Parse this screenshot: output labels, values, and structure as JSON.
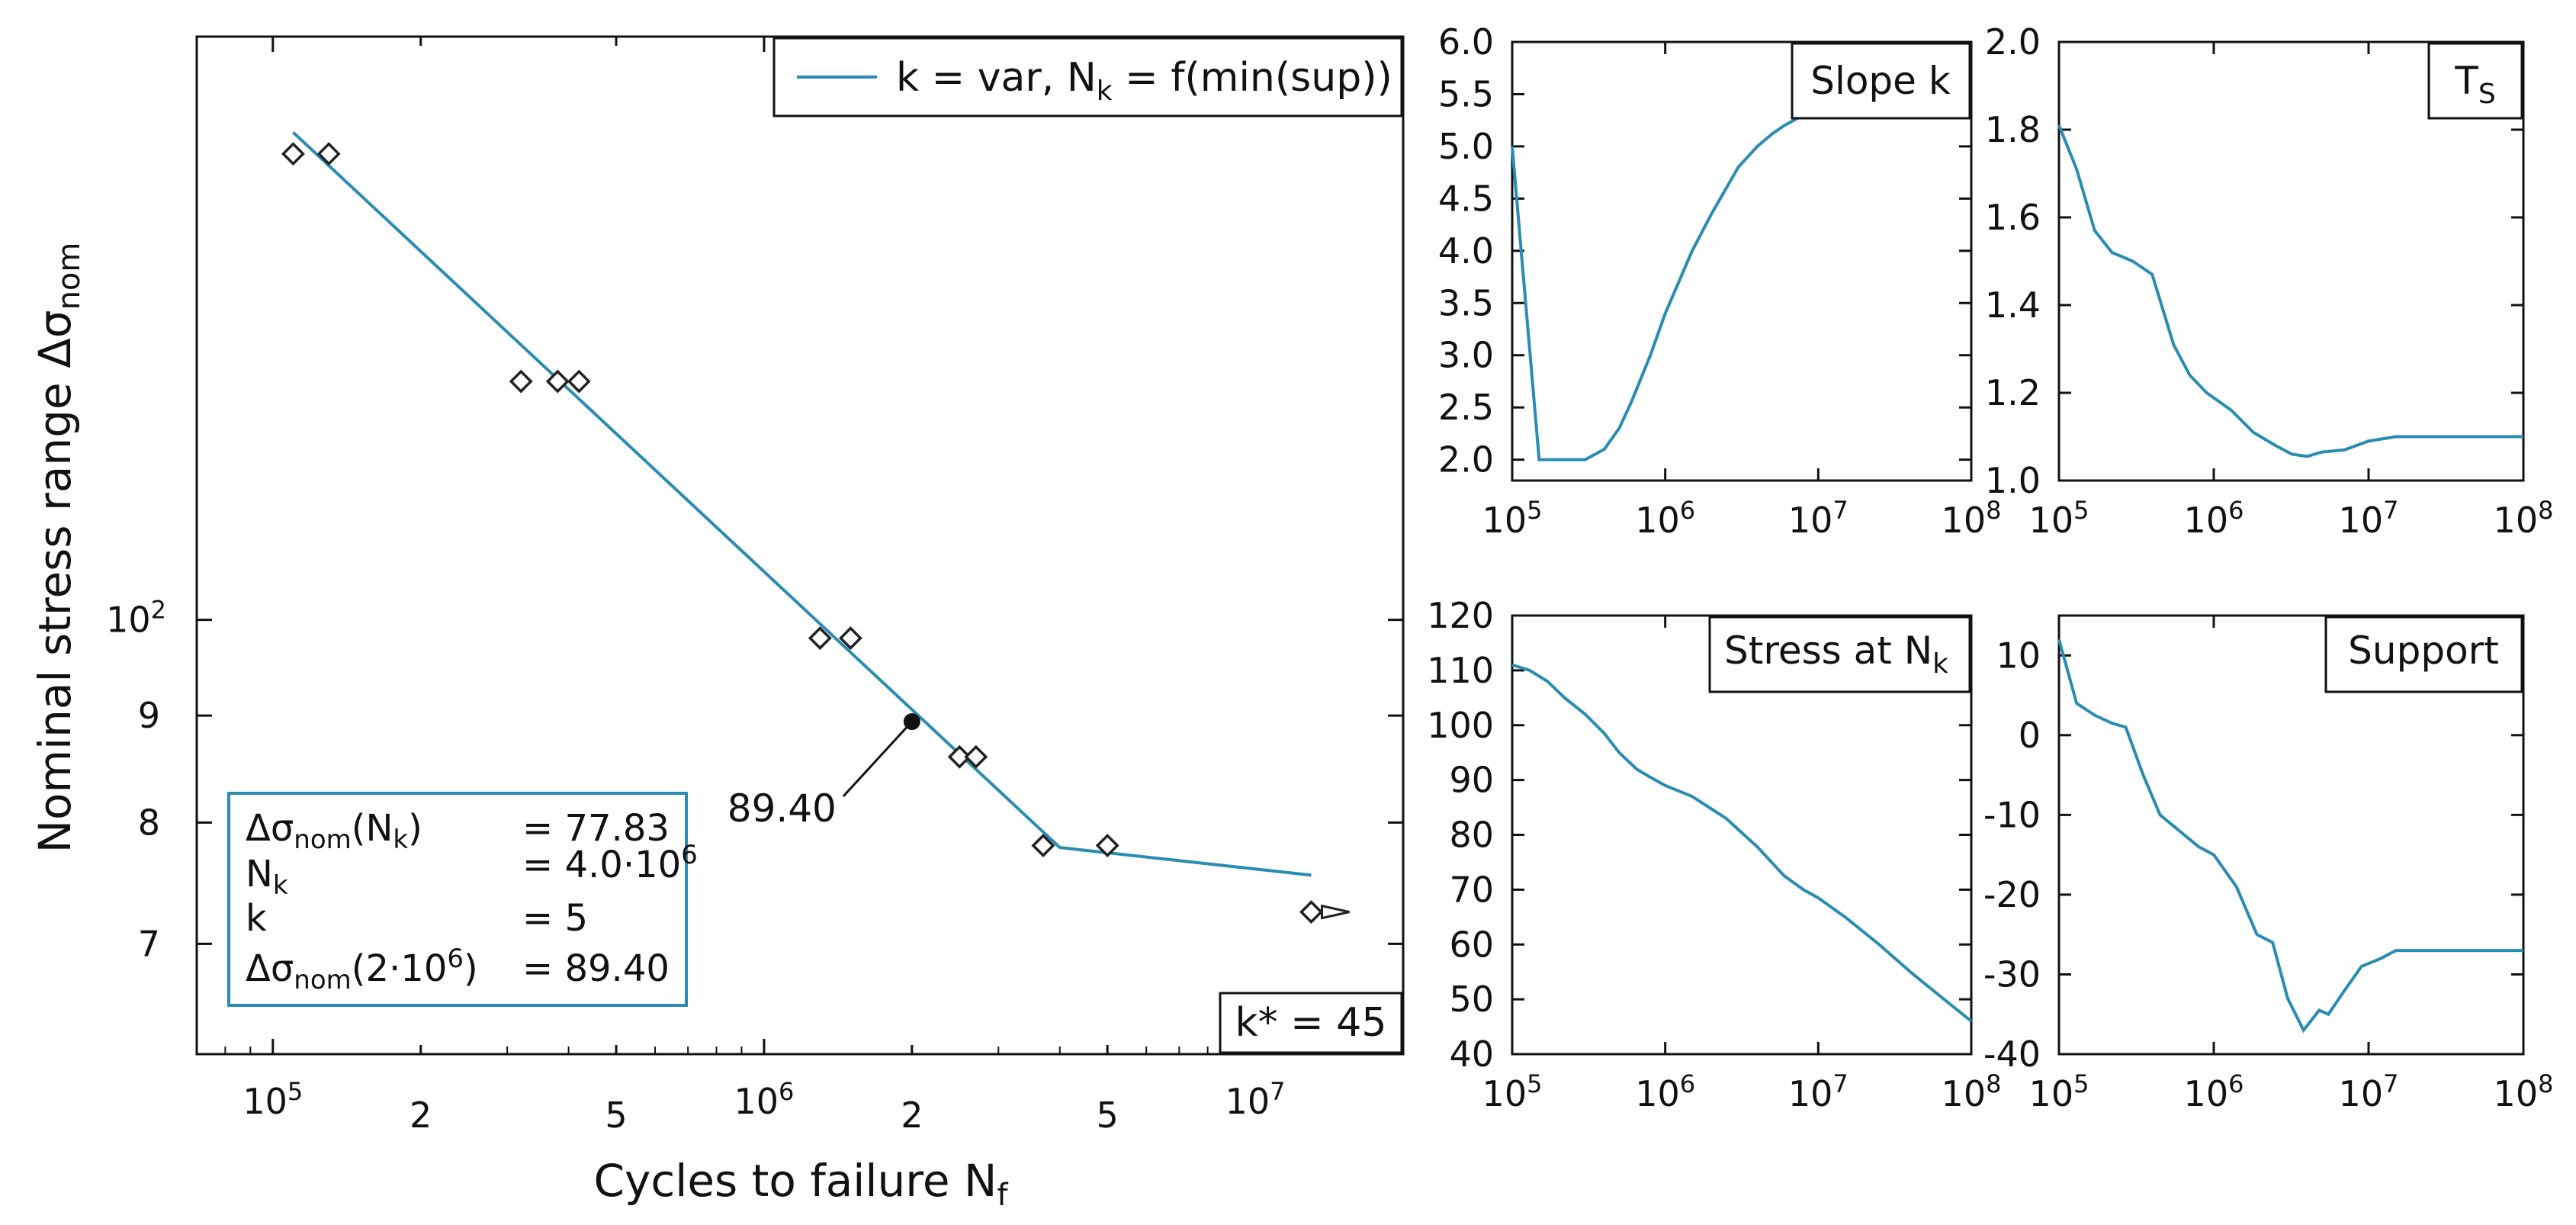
{
  "colors": {
    "line": "#2a8cb2",
    "axis": "#111111",
    "marker": "#222222",
    "background": "#ffffff"
  },
  "chart_data": [
    {
      "id": "main",
      "type": "scatter",
      "title": "",
      "xlabel": {
        "main": "Cycles to failure N",
        "sub": "f"
      },
      "ylabel": {
        "main": "Nominal stress range Δσ",
        "sub": "nom"
      },
      "x_scale": "log",
      "y_scale": "log",
      "xlim": [
        70000,
        20000000
      ],
      "ylim": [
        62,
        190
      ],
      "x_ticks": [
        {
          "value": 100000,
          "base": "10",
          "exp": "5"
        },
        {
          "value": 200000,
          "label": "2"
        },
        {
          "value": 500000,
          "label": "5"
        },
        {
          "value": 1000000,
          "base": "10",
          "exp": "6"
        },
        {
          "value": 2000000,
          "label": "2"
        },
        {
          "value": 5000000,
          "label": "5"
        },
        {
          "value": 10000000,
          "base": "10",
          "exp": "7"
        }
      ],
      "y_ticks": [
        {
          "value": 70,
          "label": "7"
        },
        {
          "value": 80,
          "label": "8"
        },
        {
          "value": 90,
          "label": "9"
        },
        {
          "value": 100,
          "base": "10",
          "exp": "2"
        }
      ],
      "legend": {
        "main": "k = var, N",
        "sub": "k",
        "tail": " = f(min(sup))",
        "position": "top-right"
      },
      "fit_line": {
        "name": "k = var, Nk = f(min(sup))",
        "x": [
          110000,
          4000000,
          13000000
        ],
        "y": [
          171,
          77.83,
          75.5
        ]
      },
      "points": [
        {
          "x": 110000,
          "y": 167
        },
        {
          "x": 130000,
          "y": 167
        },
        {
          "x": 320000,
          "y": 130
        },
        {
          "x": 380000,
          "y": 130
        },
        {
          "x": 420000,
          "y": 130
        },
        {
          "x": 1300000,
          "y": 98
        },
        {
          "x": 1500000,
          "y": 98
        },
        {
          "x": 2500000,
          "y": 86
        },
        {
          "x": 2700000,
          "y": 86
        },
        {
          "x": 3700000,
          "y": 78
        },
        {
          "x": 5000000,
          "y": 78
        },
        {
          "x": 13000000,
          "y": 72.5
        }
      ],
      "runout": {
        "x": 13000000,
        "y": 72.5
      },
      "highlight": {
        "x": 2000000,
        "y": 89.4,
        "label": "89.40"
      },
      "info_box": {
        "rows": [
          {
            "sym": "Δσ",
            "sub": "nom",
            "arg": "(N",
            "argsub": "k",
            "argtail": ")",
            "value": "= 77.83"
          },
          {
            "sym": "N",
            "sub": "k",
            "arg": "",
            "argsub": "",
            "argtail": "",
            "value": "= 4.0·10",
            "vexp": "6"
          },
          {
            "sym": "k",
            "sub": "",
            "arg": "",
            "argsub": "",
            "argtail": "",
            "value": "= 5"
          },
          {
            "sym": "Δσ",
            "sub": "nom",
            "arg": "(2·10",
            "argsup": "6",
            "argtail": ")",
            "value": "= 89.40"
          }
        ]
      },
      "kstar": "k* = 45"
    },
    {
      "id": "slope",
      "type": "line",
      "title": "Slope k",
      "x_scale": "log",
      "xlim": [
        100000,
        100000000
      ],
      "ylim": [
        1.8,
        6.0
      ],
      "y_ticks": [
        "2.0",
        "2.5",
        "3.0",
        "3.5",
        "4.0",
        "4.5",
        "5.0",
        "5.5",
        "6.0"
      ],
      "y_tick_values": [
        2.0,
        2.5,
        3.0,
        3.5,
        4.0,
        4.5,
        5.0,
        5.5,
        6.0
      ],
      "x_ticks": [
        {
          "value": 100000,
          "base": "10",
          "exp": "5"
        },
        {
          "value": 1000000,
          "base": "10",
          "exp": "6"
        },
        {
          "value": 10000000,
          "base": "10",
          "exp": "7"
        },
        {
          "value": 100000000,
          "base": "10",
          "exp": "8"
        }
      ],
      "x": [
        100000,
        150000,
        200000,
        300000,
        400000,
        500000,
        600000,
        800000,
        1000000,
        1500000,
        2000000,
        3000000,
        4000000,
        5000000,
        6000000,
        8000000
      ],
      "y": [
        5.0,
        2.0,
        2.0,
        2.0,
        2.1,
        2.3,
        2.55,
        3.0,
        3.4,
        4.0,
        4.35,
        4.8,
        5.0,
        5.12,
        5.2,
        5.3
      ]
    },
    {
      "id": "ts",
      "type": "line",
      "title": {
        "main": "T",
        "sub": "S"
      },
      "x_scale": "log",
      "xlim": [
        100000,
        100000000
      ],
      "ylim": [
        1.0,
        2.0
      ],
      "y_ticks": [
        "1.0",
        "1.2",
        "1.4",
        "1.6",
        "1.8",
        "2.0"
      ],
      "y_tick_values": [
        1.0,
        1.2,
        1.4,
        1.6,
        1.8,
        2.0
      ],
      "x_ticks": [
        {
          "value": 100000,
          "base": "10",
          "exp": "5"
        },
        {
          "value": 1000000,
          "base": "10",
          "exp": "6"
        },
        {
          "value": 10000000,
          "base": "10",
          "exp": "7"
        },
        {
          "value": 100000000,
          "base": "10",
          "exp": "8"
        }
      ],
      "x": [
        100000,
        130000,
        170000,
        220000,
        300000,
        400000,
        550000,
        700000,
        900000,
        1300000,
        1800000,
        2500000,
        3200000,
        4000000,
        5000000,
        7000000,
        10000000,
        15000000,
        100000000
      ],
      "y": [
        1.81,
        1.71,
        1.57,
        1.52,
        1.5,
        1.47,
        1.31,
        1.24,
        1.2,
        1.16,
        1.11,
        1.08,
        1.06,
        1.055,
        1.065,
        1.07,
        1.09,
        1.1,
        1.1
      ]
    },
    {
      "id": "stress",
      "type": "line",
      "title": {
        "main": "Stress at N",
        "sub": "k"
      },
      "x_scale": "log",
      "xlim": [
        100000,
        100000000
      ],
      "ylim": [
        40,
        120
      ],
      "y_ticks": [
        "40",
        "50",
        "60",
        "70",
        "80",
        "90",
        "100",
        "110",
        "120"
      ],
      "y_tick_values": [
        40,
        50,
        60,
        70,
        80,
        90,
        100,
        110,
        120
      ],
      "x_ticks": [
        {
          "value": 100000,
          "base": "10",
          "exp": "5"
        },
        {
          "value": 1000000,
          "base": "10",
          "exp": "6"
        },
        {
          "value": 10000000,
          "base": "10",
          "exp": "7"
        },
        {
          "value": 100000000,
          "base": "10",
          "exp": "8"
        }
      ],
      "x": [
        100000,
        130000,
        170000,
        220000,
        300000,
        400000,
        500000,
        650000,
        800000,
        1000000,
        1500000,
        2500000,
        4000000,
        6000000,
        8000000,
        10000000,
        15000000,
        25000000,
        40000000,
        60000000,
        100000000
      ],
      "y": [
        111,
        110,
        108,
        105,
        102,
        98.5,
        95,
        92,
        90.5,
        89,
        87,
        83,
        77.8,
        72.5,
        70,
        68.5,
        65,
        60,
        55,
        51,
        46
      ]
    },
    {
      "id": "support",
      "type": "line",
      "title": "Support",
      "x_scale": "log",
      "xlim": [
        100000,
        100000000
      ],
      "ylim": [
        -40,
        15
      ],
      "y_ticks": [
        "-40",
        "-30",
        "-20",
        "-10",
        "0",
        "10"
      ],
      "y_tick_values": [
        -40,
        -30,
        -20,
        -10,
        0,
        10
      ],
      "x_ticks": [
        {
          "value": 100000,
          "base": "10",
          "exp": "5"
        },
        {
          "value": 1000000,
          "base": "10",
          "exp": "6"
        },
        {
          "value": 10000000,
          "base": "10",
          "exp": "7"
        },
        {
          "value": 100000000,
          "base": "10",
          "exp": "8"
        }
      ],
      "x": [
        100000,
        130000,
        170000,
        220000,
        270000,
        350000,
        450000,
        600000,
        800000,
        1000000,
        1400000,
        1900000,
        2400000,
        3000000,
        3800000,
        4800000,
        5500000,
        7000000,
        9000000,
        12000000,
        15000000,
        100000000
      ],
      "y": [
        12,
        4,
        2.5,
        1.5,
        1,
        -5,
        -10,
        -12,
        -14,
        -15,
        -19,
        -25,
        -26,
        -33,
        -37,
        -34.5,
        -35,
        -32,
        -29,
        -28,
        -27,
        -27
      ]
    }
  ]
}
